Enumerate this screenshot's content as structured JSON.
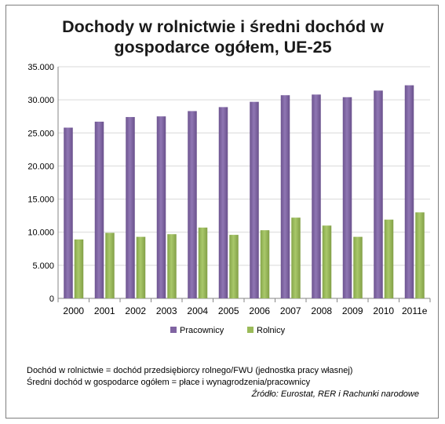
{
  "title_lines": [
    "Dochody w rolnictwie i średni dochód w",
    "gospodarce ogółem, UE-25"
  ],
  "notes": {
    "line1": "Dochód w rolnictwie = dochód przedsiębiorcy rolnego/FWU (jednostka pracy własnej)",
    "line2": "Średni dochód w gospodarce ogółem = płace i wynagrodzenia/pracownicy",
    "source": "Źródło: Eurostat, RER i Rachunki narodowe"
  },
  "chart_data": {
    "type": "bar",
    "title": "Dochody w rolnictwie i średni dochód w gospodarce ogółem, UE-25",
    "categories": [
      "2000",
      "2001",
      "2002",
      "2003",
      "2004",
      "2005",
      "2006",
      "2007",
      "2008",
      "2009",
      "2010",
      "2011e"
    ],
    "series": [
      {
        "name": "Pracownicy",
        "color": "#8064a2",
        "values": [
          25800,
          26700,
          27400,
          27500,
          28300,
          28900,
          29700,
          30700,
          30800,
          30400,
          31400,
          32200
        ]
      },
      {
        "name": "Rolnicy",
        "color": "#9bbb59",
        "values": [
          8900,
          9900,
          9300,
          9700,
          10700,
          9600,
          10300,
          12200,
          11000,
          9300,
          11900,
          13000
        ]
      }
    ],
    "ylim": [
      0,
      35000
    ],
    "yticks": [
      0,
      5000,
      10000,
      15000,
      20000,
      25000,
      30000,
      35000
    ],
    "ytick_labels": [
      "0",
      "5.000",
      "10.000",
      "15.000",
      "20.000",
      "25.000",
      "30.000",
      "35.000"
    ],
    "grid": true,
    "legend": "bottom"
  }
}
